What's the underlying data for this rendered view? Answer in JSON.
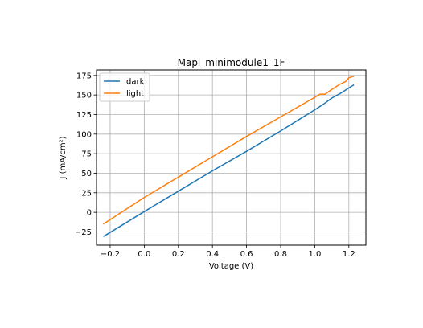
{
  "chart_data": {
    "type": "line",
    "title": "Mapi_minimodule1_1F",
    "xlabel": "Voltage (V)",
    "ylabel": "J (mA/cm²)",
    "xlim": [
      -0.28,
      1.3
    ],
    "ylim": [
      -42,
      182
    ],
    "xticks": [
      -0.2,
      0.0,
      0.2,
      0.4,
      0.6,
      0.8,
      1.0,
      1.2
    ],
    "xtick_labels": [
      "−0.2",
      "0.0",
      "0.2",
      "0.4",
      "0.6",
      "0.8",
      "1.0",
      "1.2"
    ],
    "yticks": [
      -25,
      0,
      25,
      50,
      75,
      100,
      125,
      150,
      175
    ],
    "ytick_labels": [
      "−25",
      "0",
      "25",
      "50",
      "75",
      "100",
      "125",
      "150",
      "175"
    ],
    "grid": true,
    "legend_position": "top-left",
    "series": [
      {
        "name": "dark",
        "color": "#1f77b4",
        "x": [
          -0.24,
          0.0,
          0.2,
          0.4,
          0.6,
          0.8,
          1.0,
          1.05,
          1.1,
          1.15,
          1.2,
          1.23
        ],
        "y": [
          -31,
          1,
          27,
          53,
          78,
          104,
          131,
          138,
          146,
          152,
          159,
          163
        ]
      },
      {
        "name": "light",
        "color": "#ff7f0e",
        "x": [
          -0.24,
          0.0,
          0.2,
          0.4,
          0.6,
          0.8,
          1.0,
          1.03,
          1.06,
          1.1,
          1.15,
          1.18,
          1.2,
          1.23
        ],
        "y": [
          -15,
          19,
          45,
          71,
          97,
          122,
          147,
          151,
          151,
          157,
          164,
          167,
          172,
          174
        ]
      }
    ]
  }
}
